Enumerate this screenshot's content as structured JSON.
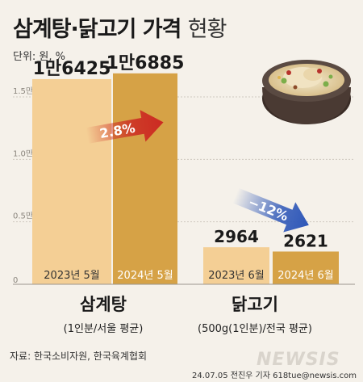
{
  "header": {
    "title_bold": "삼계탕·닭고기 가격",
    "title_light": "현황",
    "unit": "단위: 원, %"
  },
  "footer": {
    "source": "자료: 한국소비자원, 한국육계협회",
    "credit": "24.07.05 전진우 기자 618tue@newsis.com",
    "watermark": "NEWSIS"
  },
  "chart_data": {
    "type": "bar",
    "title": "삼계탕·닭고기 가격 현황",
    "unit": "단위: 원, %",
    "ylim": [
      0,
      18000
    ],
    "yticks": [
      {
        "value": 15000,
        "label": "1.5만"
      },
      {
        "value": 10000,
        "label": "1.0만"
      },
      {
        "value": 5000,
        "label": "0.5만"
      },
      {
        "value": 0,
        "label": "0"
      }
    ],
    "groups": [
      {
        "name": "삼계탕",
        "sub": "(1인분/서울 평균)",
        "bars": [
          {
            "period": "2023년 5월",
            "value": 16425,
            "label": "1만6425",
            "color": "#f4cf95"
          },
          {
            "period": "2024년 5월",
            "value": 16885,
            "label": "1만6885",
            "color": "#d6a246"
          }
        ],
        "change": {
          "label": "2.8%",
          "direction": "up",
          "color": "#cc2a22"
        }
      },
      {
        "name": "닭고기",
        "sub": "(500g(1인분)/전국 평균)",
        "bars": [
          {
            "period": "2023년 6월",
            "value": 2964,
            "label": "2964",
            "color": "#f4cf95"
          },
          {
            "period": "2024년 6월",
            "value": 2621,
            "label": "2621",
            "color": "#d6a246"
          }
        ],
        "change": {
          "label": "−12%",
          "direction": "down",
          "color": "#2e57b8"
        }
      }
    ],
    "grid": true
  }
}
